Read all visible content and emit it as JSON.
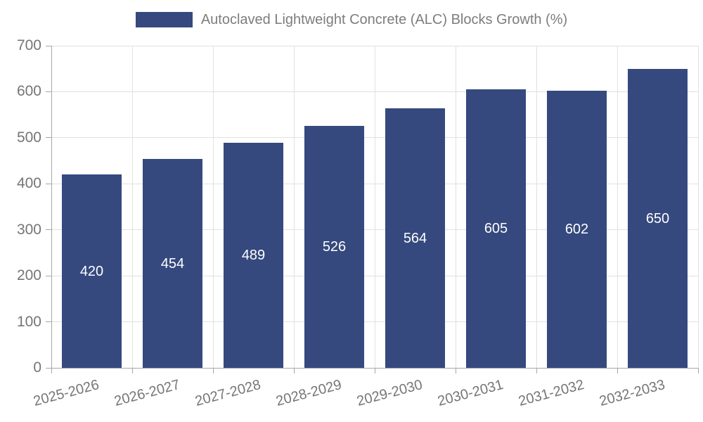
{
  "chart_data": {
    "type": "bar",
    "title": "",
    "series_name": "Autoclaved Lightweight Concrete (ALC) Blocks Growth (%)",
    "categories": [
      "2025-2026",
      "2026-2027",
      "2027-2028",
      "2028-2029",
      "2029-2030",
      "2030-2031",
      "2031-2032",
      "2032-2033"
    ],
    "values": [
      420,
      454,
      489,
      526,
      564,
      605,
      602,
      650
    ],
    "xlabel": "",
    "ylabel": "",
    "ylim": [
      0,
      700
    ],
    "y_ticks": [
      0,
      100,
      200,
      300,
      400,
      500,
      600,
      700
    ],
    "grid": true,
    "legend_position": "top-center",
    "x_label_rotation_deg": -15,
    "value_labels_inside_bars": true,
    "colors": {
      "bar": "#35497E",
      "value_label": "#FFFFFF",
      "axis_text": "#757575",
      "legend_text": "#7D7D7D",
      "gridline": "#E1E1E1",
      "axis_line": "#A6A6A6",
      "background": "#FFFFFF"
    }
  }
}
